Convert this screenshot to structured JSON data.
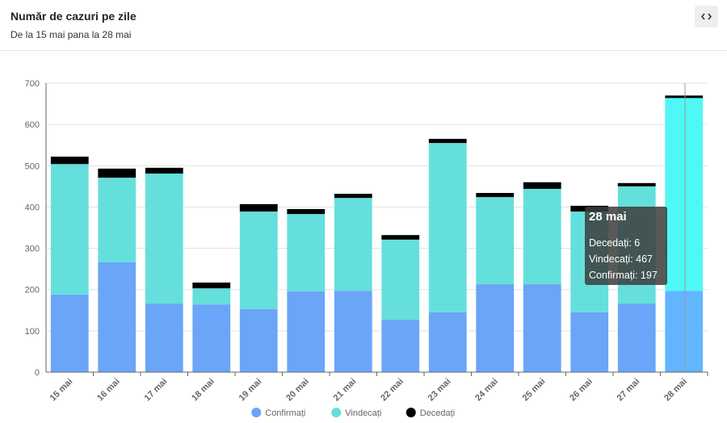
{
  "chart_data": {
    "type": "stacked_bar",
    "title": "Număr de cazuri pe zile",
    "subtitle": "De la 15 mai pana la 28 mai",
    "categories": [
      "15 mai",
      "16 mai",
      "17 mai",
      "18 mai",
      "19 mai",
      "20 mai",
      "21 mai",
      "22 mai",
      "23 mai",
      "24 mai",
      "25 mai",
      "26 mai",
      "27 mai",
      "28 mai"
    ],
    "series": [
      {
        "name": "Confirmați",
        "color": "#6aa5f8",
        "values": [
          188,
          266,
          166,
          164,
          153,
          196,
          197,
          127,
          145,
          213,
          213,
          145,
          166,
          197
        ]
      },
      {
        "name": "Vindecați",
        "color": "#65dfdc",
        "values": [
          316,
          205,
          315,
          39,
          236,
          187,
          225,
          194,
          410,
          211,
          231,
          244,
          284,
          467
        ]
      },
      {
        "name": "Decedați",
        "color": "#000000",
        "values": [
          18,
          22,
          14,
          14,
          18,
          12,
          10,
          11,
          10,
          10,
          16,
          14,
          8,
          6
        ]
      }
    ],
    "ylim": [
      0,
      700
    ],
    "yticks": [
      0,
      100,
      200,
      300,
      400,
      500,
      600,
      700
    ],
    "grid": true
  }
}
